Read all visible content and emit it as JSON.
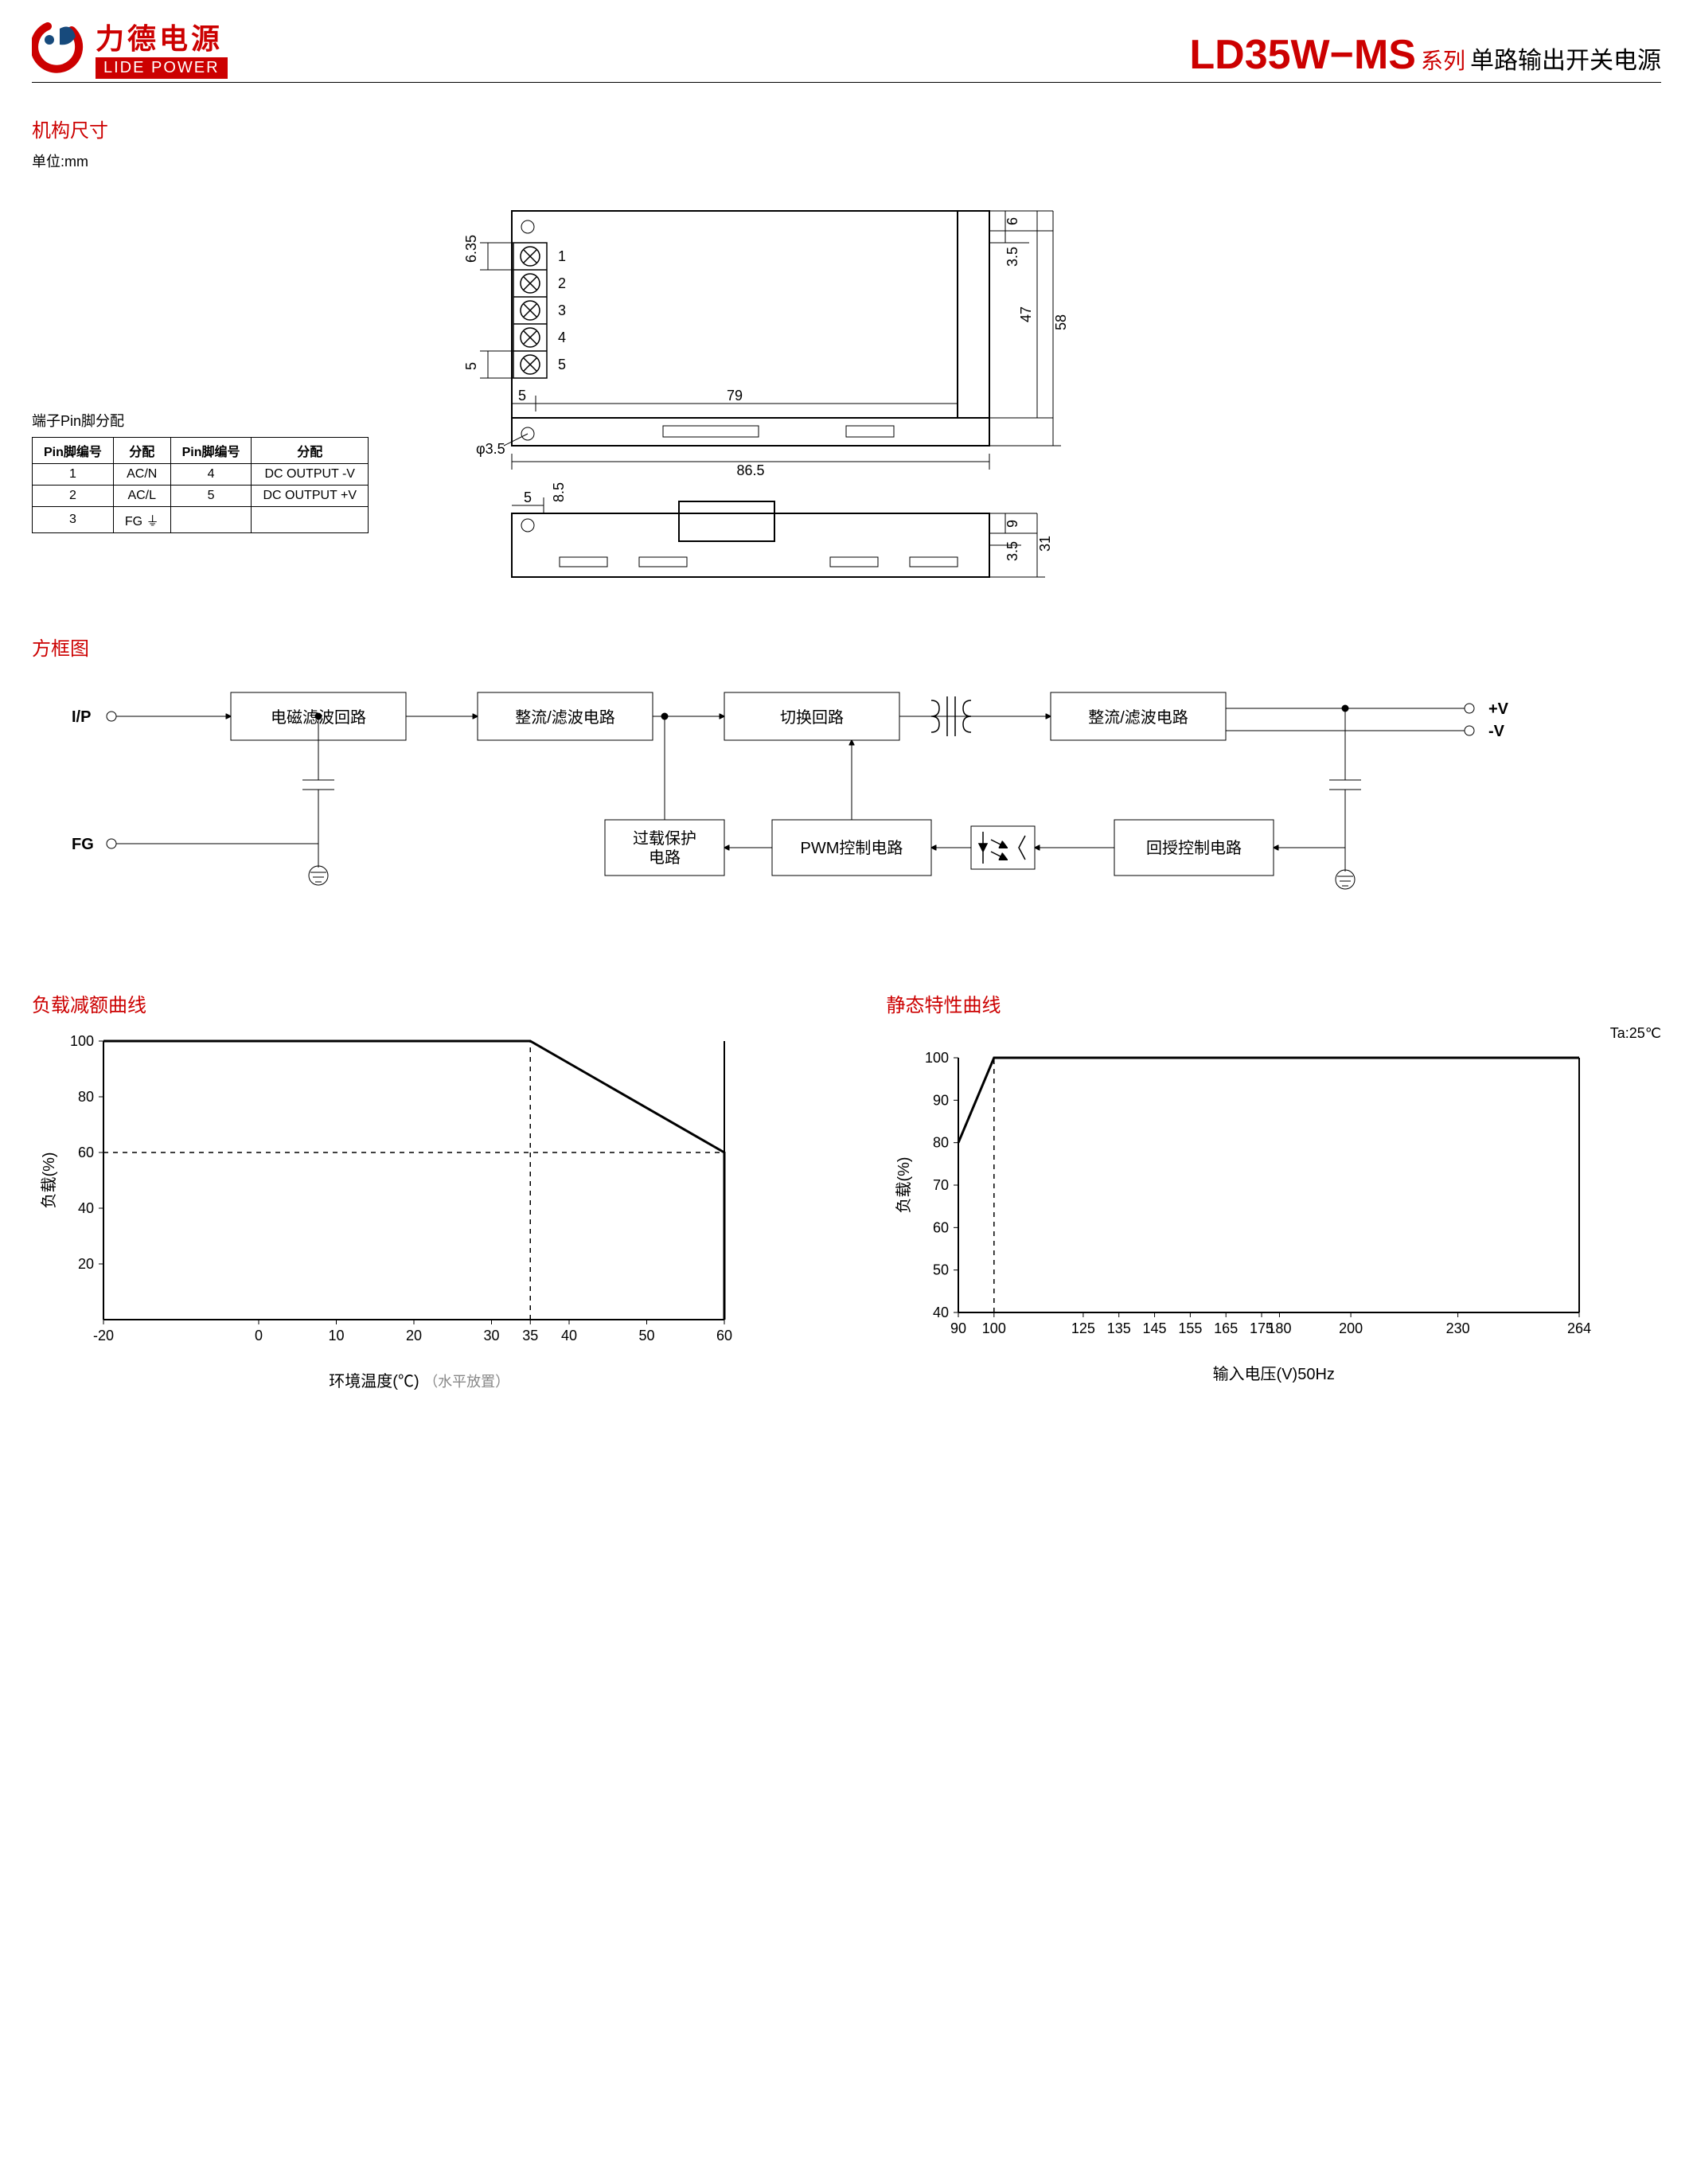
{
  "header": {
    "logo_cn": "力德电源",
    "logo_en": "LIDE POWER",
    "model": "LD35W−MS",
    "series": "系列",
    "desc": "单路输出开关电源"
  },
  "mech": {
    "section": "机构尺寸",
    "unit": "单位:mm",
    "dims": {
      "pin_pitch": "6.35",
      "pin_bottom_gap": "5",
      "left_margin": "5",
      "body_inner": "79",
      "body_width": "86.5",
      "hole_d": "φ3.5",
      "right_top": "6",
      "right_slot": "3.5",
      "right_inner": "47",
      "right_outer": "58",
      "side_left": "5",
      "side_top_in": "8.5",
      "side_right_top": "9",
      "side_right_slot": "3.5",
      "side_height": "31",
      "pins": [
        "1",
        "2",
        "3",
        "4",
        "5"
      ]
    }
  },
  "pin_table": {
    "title": "端子Pin脚分配",
    "headers": [
      "Pin脚编号",
      "分配",
      "Pin脚编号",
      "分配"
    ],
    "rows": [
      [
        "1",
        "AC/N",
        "4",
        "DC OUTPUT -V"
      ],
      [
        "2",
        "AC/L",
        "5",
        "DC OUTPUT +V"
      ],
      [
        "3",
        "FG ⏚",
        "",
        ""
      ]
    ]
  },
  "block": {
    "section": "方框图",
    "ip": "I/P",
    "fg": "FG",
    "b1": "电磁滤波回路",
    "b2": "整流/滤波电路",
    "b3": "切换回路",
    "b4": "整流/滤波电路",
    "b5": "过载保护\n电路",
    "b6": "PWM控制电路",
    "b7": "回授控制电路",
    "out_p": "+V",
    "out_n": "-V"
  },
  "chart1": {
    "section": "负载减额曲线",
    "type": "line",
    "ylabel": "负载(%)",
    "xlabel": "环境温度(℃)",
    "extra": "（水平放置）",
    "xlim": [
      -20,
      60
    ],
    "ylim": [
      0,
      100
    ],
    "xticks": [
      -20,
      0,
      10,
      20,
      30,
      35,
      40,
      50,
      60
    ],
    "yticks": [
      20,
      40,
      60,
      80,
      100
    ],
    "line_color": "#000",
    "line_width": 3,
    "dash_color": "#000",
    "dash_pattern": "6,6",
    "points": [
      [
        -20,
        100
      ],
      [
        35,
        100
      ],
      [
        60,
        60
      ],
      [
        60,
        0
      ]
    ],
    "dash1": [
      [
        35,
        0
      ],
      [
        35,
        100
      ]
    ],
    "dash2": [
      [
        -20,
        60
      ],
      [
        60,
        60
      ]
    ],
    "axis_color": "#000"
  },
  "chart2": {
    "section": "静态特性曲线",
    "note": "Ta:25℃",
    "type": "line",
    "ylabel": "负载(%)",
    "xlabel": "输入电压(V)50Hz",
    "xlim": [
      90,
      264
    ],
    "ylim": [
      40,
      100
    ],
    "xticks": [
      90,
      100,
      125,
      135,
      145,
      155,
      165,
      175,
      180,
      200,
      230,
      264
    ],
    "yticks": [
      40,
      50,
      60,
      70,
      80,
      90,
      100
    ],
    "line_color": "#000",
    "line_width": 3,
    "dash_color": "#000",
    "dash_pattern": "6,6",
    "points": [
      [
        90,
        80
      ],
      [
        100,
        100
      ],
      [
        264,
        100
      ]
    ],
    "dash1": [
      [
        100,
        40
      ],
      [
        100,
        100
      ]
    ],
    "axis_color": "#000"
  }
}
